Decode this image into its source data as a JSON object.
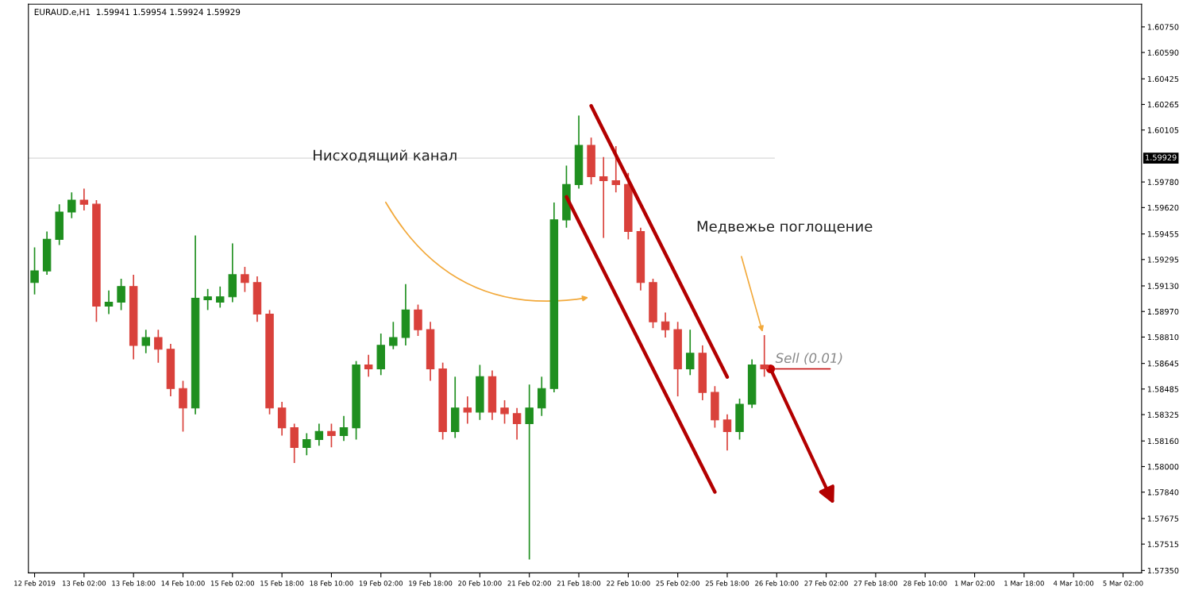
{
  "chart_data": {
    "type": "candlestick",
    "title": "EURAUD.e,H1  1.59941 1.59954 1.59924 1.59929",
    "categories": [
      "12 Feb 2019",
      null,
      null,
      null,
      "13 Feb 02:00",
      null,
      null,
      null,
      "13 Feb 18:00",
      null,
      null,
      null,
      "14 Feb 10:00",
      null,
      null,
      null,
      "15 Feb 02:00",
      null,
      null,
      null,
      "15 Feb 18:00",
      null,
      null,
      null,
      "18 Feb 10:00",
      null,
      null,
      null,
      "19 Feb 02:00",
      null,
      null,
      null,
      "19 Feb 18:00",
      null,
      null,
      null,
      "20 Feb 10:00",
      null,
      null,
      null,
      "21 Feb 02:00",
      null,
      null,
      null,
      "21 Feb 18:00",
      null,
      null,
      null,
      "22 Feb 10:00",
      null,
      null,
      null,
      "25 Feb 02:00",
      null,
      null,
      null,
      "25 Feb 18:00",
      null,
      null,
      null,
      "26 Feb 10:00",
      null,
      null,
      null,
      "27 Feb 02:00",
      null,
      null,
      null,
      "27 Feb 18:00",
      null,
      null,
      null,
      "28 Feb 10:00",
      null,
      null,
      null,
      "1 Mar 02:00",
      null,
      null,
      null,
      "1 Mar 18:00",
      null,
      null,
      null,
      "4 Mar 10:00",
      null,
      null,
      null,
      "5 Mar 02:00",
      null
    ],
    "ohlc": [
      [
        1.59151,
        1.59371,
        1.59077,
        1.59224
      ],
      [
        1.59224,
        1.5947,
        1.592,
        1.59421
      ],
      [
        1.59421,
        1.59641,
        1.59386,
        1.59592
      ],
      [
        1.59592,
        1.59715,
        1.59553,
        1.59666
      ],
      [
        1.59666,
        1.59739,
        1.59602,
        1.59641
      ],
      [
        1.59641,
        1.59666,
        1.58905,
        1.59004
      ],
      [
        1.59004,
        1.59102,
        1.58954,
        1.59028
      ],
      [
        1.59028,
        1.59175,
        1.58979,
        1.59126
      ],
      [
        1.59126,
        1.592,
        1.5867,
        1.58758
      ],
      [
        1.58758,
        1.58856,
        1.58709,
        1.58807
      ],
      [
        1.58807,
        1.58856,
        1.5865,
        1.58734
      ],
      [
        1.58734,
        1.58768,
        1.58439,
        1.58488
      ],
      [
        1.58488,
        1.58537,
        1.58219,
        1.58366
      ],
      [
        1.58366,
        1.59445,
        1.58326,
        1.59053
      ],
      [
        1.59043,
        1.59111,
        1.58979,
        1.59062
      ],
      [
        1.59028,
        1.59126,
        1.58994,
        1.59062
      ],
      [
        1.59062,
        1.59396,
        1.59028,
        1.592
      ],
      [
        1.592,
        1.59249,
        1.59092,
        1.59151
      ],
      [
        1.59151,
        1.5919,
        1.58905,
        1.58954
      ],
      [
        1.58954,
        1.58979,
        1.58326,
        1.58366
      ],
      [
        1.58366,
        1.58405,
        1.58194,
        1.58243
      ],
      [
        1.58243,
        1.58268,
        1.58022,
        1.5812
      ],
      [
        1.5812,
        1.58209,
        1.58071,
        1.58169
      ],
      [
        1.58169,
        1.58268,
        1.5813,
        1.58219
      ],
      [
        1.58219,
        1.58268,
        1.5812,
        1.58194
      ],
      [
        1.58194,
        1.58317,
        1.5816,
        1.58243
      ],
      [
        1.58243,
        1.5866,
        1.58169,
        1.58636
      ],
      [
        1.58636,
        1.58699,
        1.58562,
        1.58611
      ],
      [
        1.58611,
        1.58832,
        1.58572,
        1.58758
      ],
      [
        1.58758,
        1.58905,
        1.58734,
        1.58807
      ],
      [
        1.58807,
        1.59141,
        1.58758,
        1.58979
      ],
      [
        1.58979,
        1.59013,
        1.58817,
        1.58856
      ],
      [
        1.58856,
        1.58905,
        1.58537,
        1.58611
      ],
      [
        1.58611,
        1.5865,
        1.58169,
        1.58219
      ],
      [
        1.58219,
        1.58562,
        1.58179,
        1.58366
      ],
      [
        1.58366,
        1.58439,
        1.58268,
        1.58341
      ],
      [
        1.58341,
        1.58636,
        1.58292,
        1.58562
      ],
      [
        1.58562,
        1.58601,
        1.58292,
        1.58341
      ],
      [
        1.58366,
        1.58415,
        1.58268,
        1.58331
      ],
      [
        1.58331,
        1.58366,
        1.58169,
        1.58268
      ],
      [
        1.58268,
        1.58513,
        1.57419,
        1.58366
      ],
      [
        1.58366,
        1.58562,
        1.58317,
        1.58488
      ],
      [
        1.58488,
        1.59651,
        1.58464,
        1.59543
      ],
      [
        1.59543,
        1.59882,
        1.59494,
        1.59764
      ],
      [
        1.59764,
        1.60196,
        1.59739,
        1.60009
      ],
      [
        1.60009,
        1.60058,
        1.59764,
        1.59813
      ],
      [
        1.59813,
        1.59936,
        1.5943,
        1.59788
      ],
      [
        1.59788,
        1.60004,
        1.59715,
        1.59764
      ],
      [
        1.59764,
        1.59837,
        1.59421,
        1.5947
      ],
      [
        1.5947,
        1.59494,
        1.59102,
        1.59151
      ],
      [
        1.59151,
        1.59175,
        1.58866,
        1.58905
      ],
      [
        1.58905,
        1.58964,
        1.58807,
        1.58856
      ],
      [
        1.58856,
        1.58905,
        1.58439,
        1.58611
      ],
      [
        1.58611,
        1.58856,
        1.58572,
        1.58709
      ],
      [
        1.58709,
        1.58758,
        1.58415,
        1.58464
      ],
      [
        1.58464,
        1.58503,
        1.58243,
        1.58292
      ],
      [
        1.58292,
        1.58326,
        1.58101,
        1.58219
      ],
      [
        1.58219,
        1.58425,
        1.58169,
        1.5839
      ],
      [
        1.5839,
        1.5867,
        1.58366,
        1.58636
      ],
      [
        1.58636,
        1.58822,
        1.58562,
        1.58611
      ],
      null,
      null,
      null,
      null,
      null,
      null,
      null,
      null,
      null,
      null,
      null,
      null,
      null,
      null,
      null,
      null,
      null,
      null,
      null,
      null,
      null,
      null,
      null,
      null,
      null,
      null,
      null,
      null,
      null,
      null
    ],
    "colors": [
      "#1f8f1f",
      "#1f8f1f",
      "#1f8f1f",
      "#1f8f1f",
      "#d9413b",
      "#d9413b",
      "#1f8f1f",
      "#1f8f1f",
      "#d9413b",
      "#1f8f1f",
      "#d9413b",
      "#d9413b",
      "#d9413b",
      "#1f8f1f",
      "#1f8f1f",
      "#1f8f1f",
      "#1f8f1f",
      "#d9413b",
      "#d9413b",
      "#d9413b",
      "#d9413b",
      "#d9413b",
      "#1f8f1f",
      "#1f8f1f",
      "#d9413b",
      "#1f8f1f",
      "#1f8f1f",
      "#d9413b",
      "#1f8f1f",
      "#1f8f1f",
      "#1f8f1f",
      "#d9413b",
      "#d9413b",
      "#d9413b",
      "#1f8f1f",
      "#d9413b",
      "#1f8f1f",
      "#d9413b",
      "#d9413b",
      "#d9413b",
      "#1f8f1f",
      "#1f8f1f",
      "#1f8f1f",
      "#1f8f1f",
      "#1f8f1f",
      "#d9413b",
      "#d9413b",
      "#d9413b",
      "#d9413b",
      "#d9413b",
      "#d9413b",
      "#d9413b",
      "#d9413b",
      "#1f8f1f",
      "#d9413b",
      "#d9413b",
      "#d9413b",
      "#1f8f1f",
      "#1f8f1f",
      "#d9413b",
      null,
      null,
      null,
      null,
      null,
      null,
      null,
      null,
      null,
      null,
      null,
      null,
      null,
      null,
      null,
      null,
      null,
      null,
      null,
      null,
      null,
      null,
      null,
      null,
      null,
      null,
      null,
      null,
      null,
      null
    ],
    "series": [
      {
        "type": "line",
        "color": "#b30000",
        "values": [
          null,
          null,
          null,
          null,
          null,
          null,
          null,
          null,
          null,
          null,
          null,
          null,
          null,
          null,
          null,
          null,
          null,
          null,
          null,
          null,
          null,
          null,
          null,
          null,
          null,
          null,
          null,
          null,
          null,
          null,
          null,
          null,
          null,
          null,
          null,
          null,
          null,
          null,
          null,
          null,
          null,
          null,
          null,
          null,
          null,
          1.60256,
          null,
          null,
          null,
          null,
          null,
          null,
          null,
          null,
          null,
          null,
          1.5856,
          null,
          null,
          null,
          null,
          null,
          null,
          null,
          null,
          null,
          null,
          null,
          null,
          null,
          null,
          null,
          null,
          null,
          null,
          null,
          null,
          null,
          null,
          null,
          null,
          null,
          null,
          null,
          null,
          null,
          null,
          null,
          null,
          null
        ]
      },
      {
        "type": "line",
        "color": "#b30000",
        "values": [
          null,
          null,
          null,
          null,
          null,
          null,
          null,
          null,
          null,
          null,
          null,
          null,
          null,
          null,
          null,
          null,
          null,
          null,
          null,
          null,
          null,
          null,
          null,
          null,
          null,
          null,
          null,
          null,
          null,
          null,
          null,
          null,
          null,
          null,
          null,
          null,
          null,
          null,
          null,
          null,
          null,
          null,
          null,
          1.59687,
          null,
          null,
          null,
          null,
          null,
          null,
          null,
          null,
          null,
          null,
          null,
          1.57841,
          null,
          null,
          null,
          null,
          null,
          null,
          null,
          null,
          null,
          null,
          null,
          null,
          null,
          null,
          null,
          null,
          null,
          null,
          null,
          null,
          null,
          null,
          null,
          null,
          null,
          null,
          null,
          null,
          null,
          null,
          null,
          null,
          null,
          null
        ]
      }
    ],
    "ref_lines": [
      {
        "axis": "y",
        "value": 1.59929,
        "label": "1.59929",
        "color": "#d8d8d8"
      }
    ],
    "annotations": [
      "Нисходящий канал",
      "Медвежье поглощение",
      "Sell (0.01)"
    ],
    "ylim": [
      1.57335,
      1.60892
    ],
    "yticks": [
      {
        "value": 1.6075,
        "label": "1.60750"
      },
      {
        "value": 1.6059,
        "label": "1.60590"
      },
      {
        "value": 1.60425,
        "label": "1.60425"
      },
      {
        "value": 1.60265,
        "label": "1.60265"
      },
      {
        "value": 1.60105,
        "label": "1.60105"
      },
      {
        "value": 1.5978,
        "label": "1.59780"
      },
      {
        "value": 1.5962,
        "label": "1.59620"
      },
      {
        "value": 1.59455,
        "label": "1.59455"
      },
      {
        "value": 1.59295,
        "label": "1.59295"
      },
      {
        "value": 1.5913,
        "label": "1.59130"
      },
      {
        "value": 1.5897,
        "label": "1.58970"
      },
      {
        "value": 1.5881,
        "label": "1.58810"
      },
      {
        "value": 1.58645,
        "label": "1.58645"
      },
      {
        "value": 1.58485,
        "label": "1.58485"
      },
      {
        "value": 1.58325,
        "label": "1.58325"
      },
      {
        "value": 1.5816,
        "label": "1.58160"
      },
      {
        "value": 1.58,
        "label": "1.58000"
      },
      {
        "value": 1.5784,
        "label": "1.57840"
      },
      {
        "value": 1.57675,
        "label": "1.57675"
      },
      {
        "value": 1.57515,
        "label": "1.57515"
      },
      {
        "value": 1.5735,
        "label": "1.57350"
      }
    ],
    "grid": false
  }
}
